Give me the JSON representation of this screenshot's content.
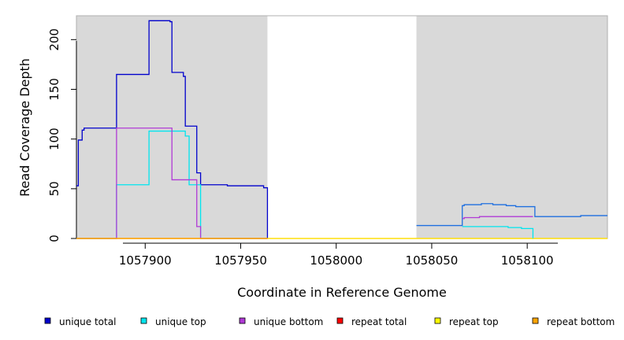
{
  "chart_data": {
    "type": "line",
    "xlabel": "Coordinate in Reference Genome",
    "ylabel": "Read Coverage Depth",
    "xlim": [
      1057864,
      1058142
    ],
    "ylim": [
      0,
      224
    ],
    "x_ticks": [
      1057900,
      1057950,
      1058000,
      1058050,
      1058100
    ],
    "x_tick_labels": [
      "1057900",
      "1057950",
      "1058000",
      "1058050",
      "1058100"
    ],
    "y_ticks": [
      0,
      50,
      100,
      150,
      200
    ],
    "y_tick_labels": [
      "0",
      "50",
      "100",
      "150",
      "200"
    ],
    "shaded_regions": [
      [
        1057864,
        1057964
      ],
      [
        1058042,
        1058142
      ]
    ],
    "legend_position": "bottom",
    "series": [
      {
        "name": "unique total",
        "color": "#0000cc",
        "x": [
          1057864,
          1057865,
          1057866,
          1057867,
          1057868,
          1057885,
          1057902,
          1057913,
          1057914,
          1057920,
          1057921,
          1057927,
          1057929,
          1057943,
          1057950,
          1057962,
          1057964
        ],
        "y": [
          53,
          99,
          99,
          109,
          111,
          165,
          219,
          218,
          167,
          163,
          113,
          66,
          54,
          53,
          53,
          51,
          0
        ]
      },
      {
        "name": "unique top",
        "color": "#00e5ee",
        "x": [
          1057864,
          1057885,
          1057902,
          1057919,
          1057921,
          1057923,
          1057929,
          1057964
        ],
        "y": [
          0,
          54,
          108,
          108,
          103,
          54,
          0,
          0
        ]
      },
      {
        "name": "unique bottom",
        "color": "#b03ad6",
        "x": [
          1057864,
          1057885,
          1057913,
          1057914,
          1057927,
          1057929,
          1057964
        ],
        "y": [
          0,
          111,
          111,
          59,
          12,
          0,
          0
        ]
      },
      {
        "name": "repeat total",
        "color": "#ff0000",
        "x": [
          1057864,
          1058142
        ],
        "y": [
          0,
          0
        ]
      },
      {
        "name": "repeat top",
        "color": "#ffff00",
        "x": [
          1057864,
          1058142
        ],
        "y": [
          0,
          0
        ]
      },
      {
        "name": "repeat bottom",
        "color": "#ffa500",
        "x": [
          1057864,
          1057964
        ],
        "y": [
          0,
          0
        ]
      },
      {
        "name": "",
        "color": "#1e6fe0",
        "x": [
          1058042,
          1058066,
          1058067,
          1058076,
          1058082,
          1058089,
          1058094,
          1058104,
          1058127,
          1058128,
          1058142
        ],
        "y": [
          13,
          33,
          34,
          35,
          34,
          33,
          32,
          22,
          22,
          23,
          23
        ]
      },
      {
        "name": "",
        "color": "#b03ad6",
        "x": [
          1058066,
          1058067,
          1058075,
          1058103
        ],
        "y": [
          20,
          21,
          22,
          22
        ]
      },
      {
        "name": "",
        "color": "#00e5ee",
        "x": [
          1058066,
          1058083,
          1058090,
          1058097,
          1058103
        ],
        "y": [
          12,
          12,
          11,
          10,
          0
        ]
      }
    ]
  }
}
